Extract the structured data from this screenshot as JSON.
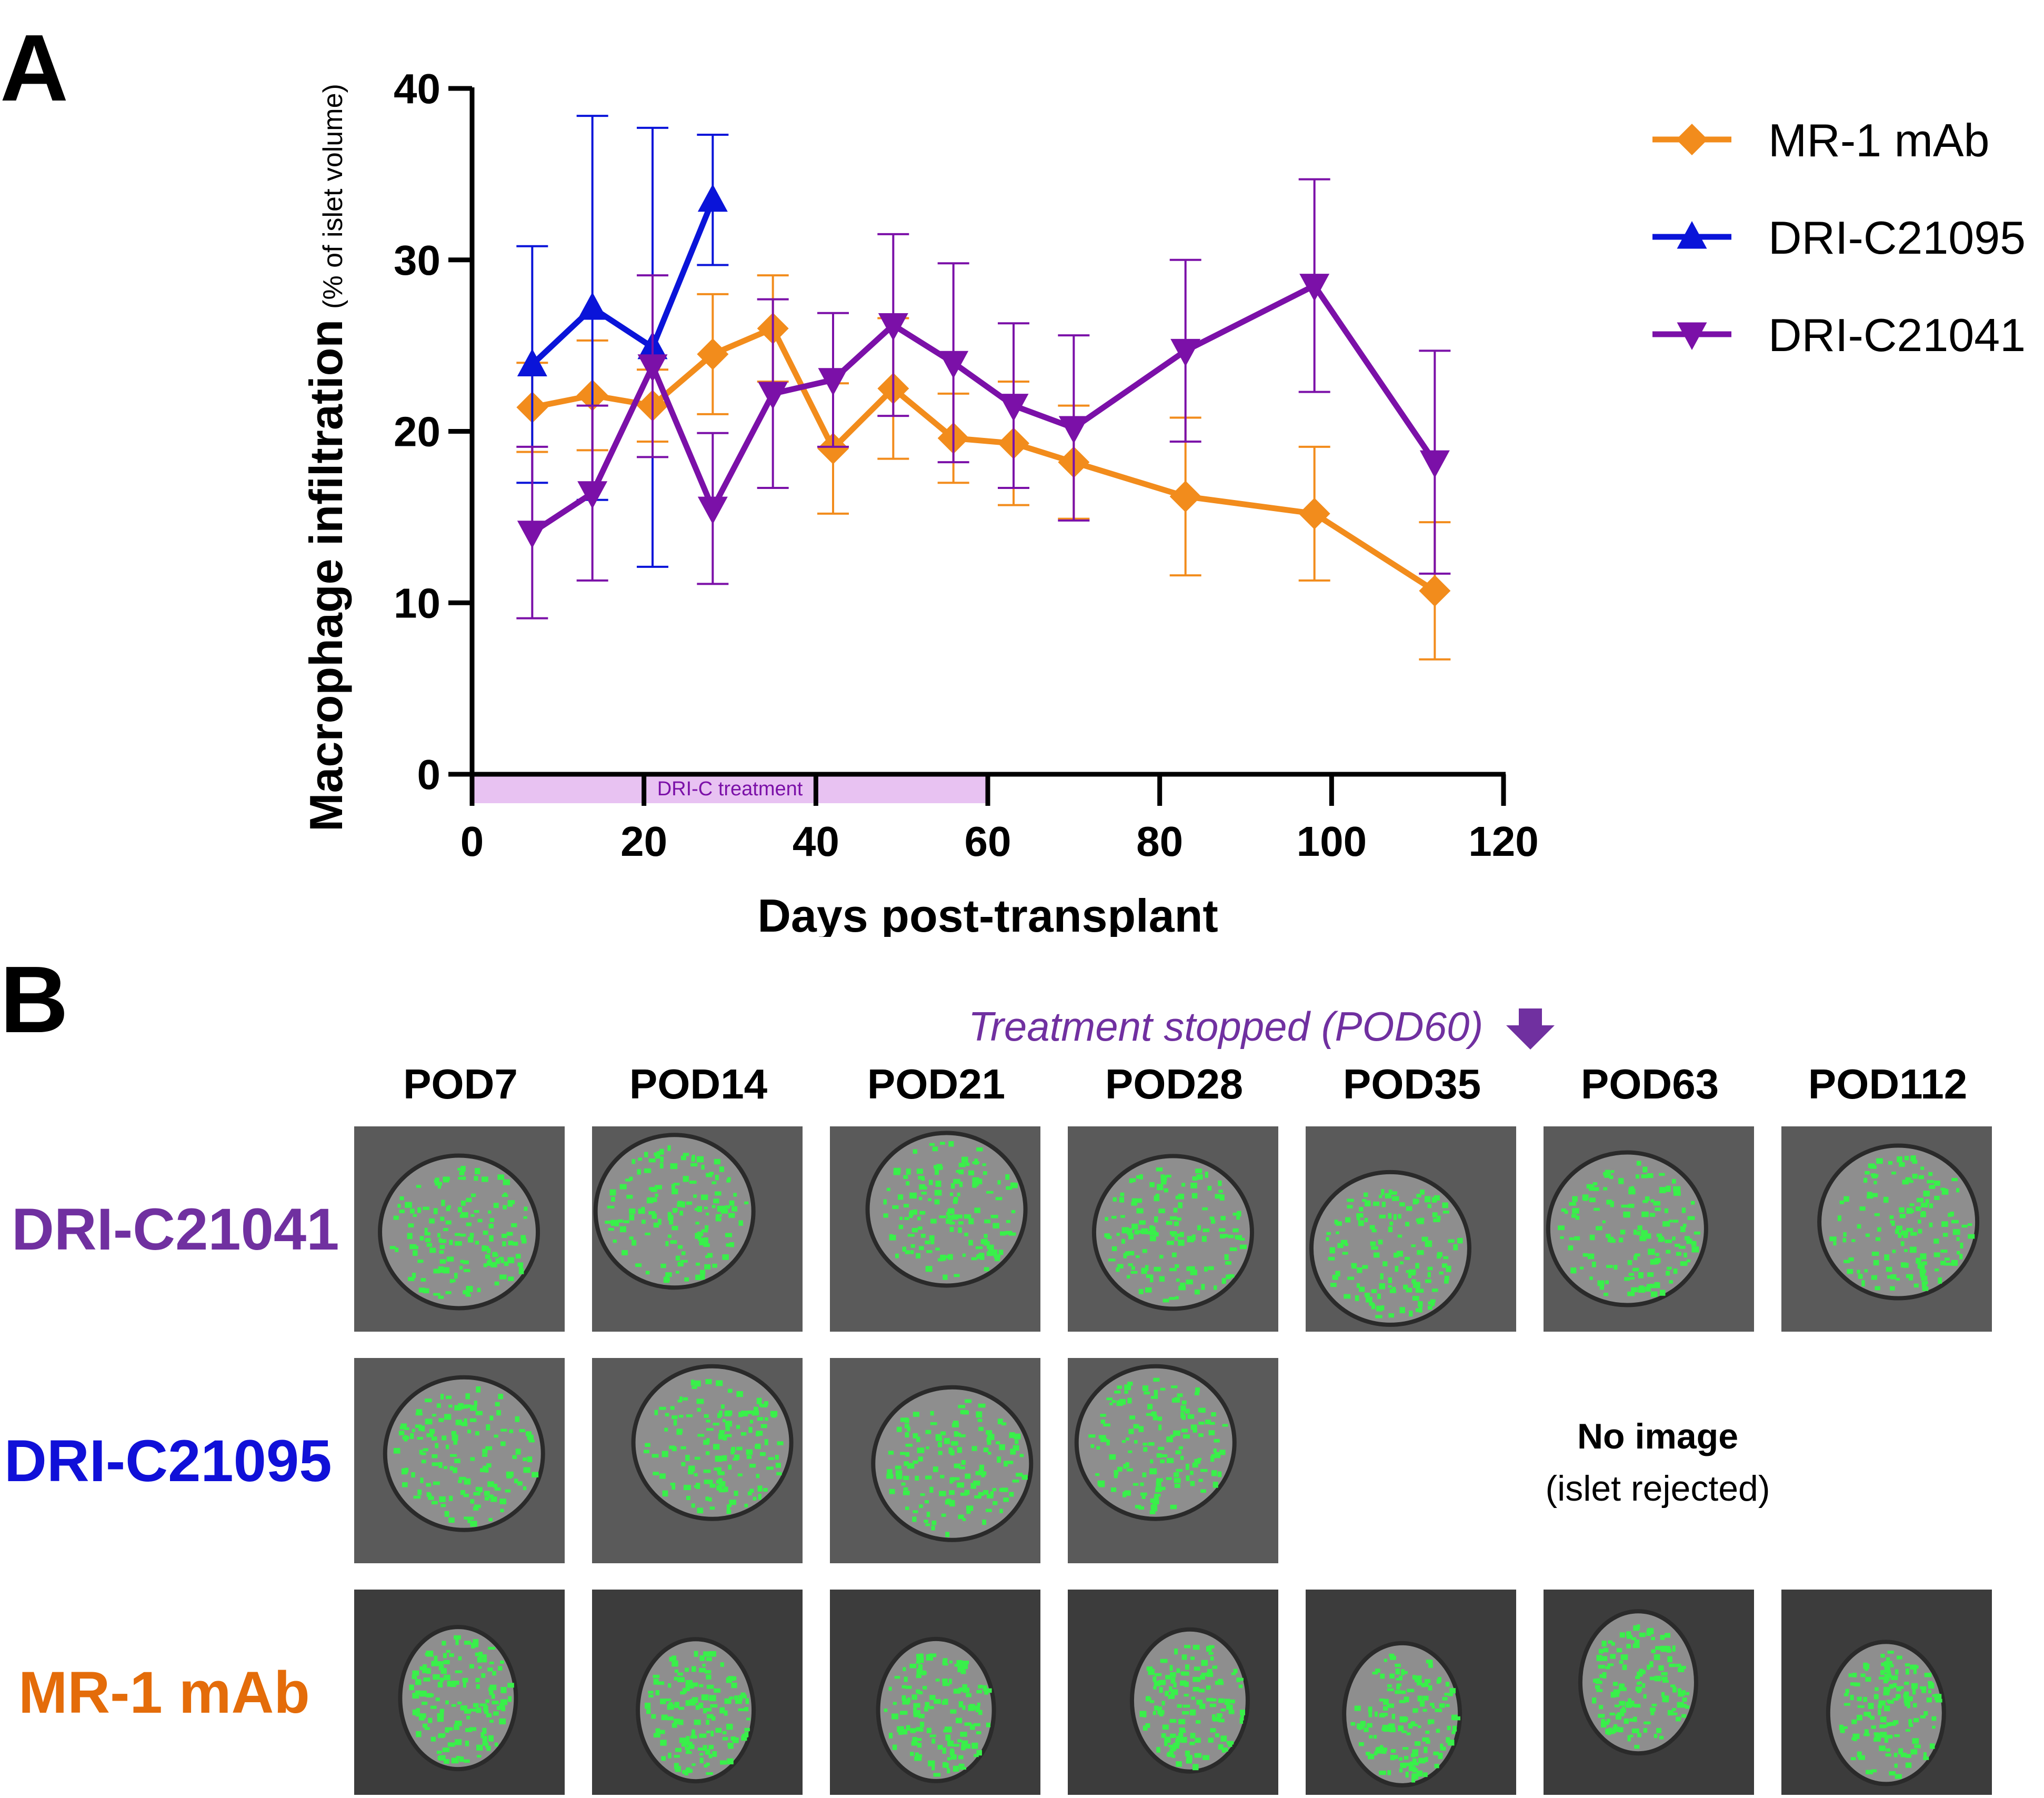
{
  "panel_a_label": "A",
  "panel_b_label": "B",
  "chart_data": {
    "type": "line",
    "ylabel_main": "Macrophage infiltration",
    "ylabel_sub": "(% of islet volume)",
    "xlabel": "Days post-transplant",
    "xlim": [
      0,
      120
    ],
    "ylim": [
      0,
      40
    ],
    "xticks": [
      0,
      20,
      40,
      60,
      80,
      100,
      120
    ],
    "yticks": [
      0,
      10,
      20,
      30,
      40
    ],
    "annotation": {
      "text": "DRI-C treatment",
      "x_start": 0,
      "x_end": 60,
      "color": "#e8c2f2"
    },
    "legend_position": "top-right",
    "series": [
      {
        "name": "MR-1 mAb",
        "color": "#f28c1c",
        "marker": "diamond",
        "x": [
          7,
          14,
          21,
          28,
          35,
          42,
          49,
          56,
          63,
          70,
          83,
          98,
          112
        ],
        "y": [
          21.4,
          22.1,
          21.5,
          24.5,
          26.0,
          19.0,
          22.5,
          19.6,
          19.3,
          18.2,
          16.2,
          15.2,
          10.7
        ],
        "err": [
          2.6,
          3.2,
          2.1,
          3.5,
          3.1,
          3.8,
          4.1,
          2.6,
          3.6,
          3.3,
          4.6,
          3.9,
          4.0
        ]
      },
      {
        "name": "DRI-C21095",
        "color": "#0a14d9",
        "marker": "triangle-up",
        "x": [
          7,
          14,
          21,
          28
        ],
        "y": [
          23.9,
          27.2,
          24.9,
          33.5
        ],
        "err": [
          6.9,
          11.2,
          12.8,
          3.8
        ]
      },
      {
        "name": "DRI-C21041",
        "color": "#7b10a8",
        "marker": "triangle-down",
        "x": [
          7,
          14,
          21,
          28,
          35,
          42,
          49,
          56,
          63,
          70,
          83,
          98,
          112
        ],
        "y": [
          14.1,
          16.4,
          23.8,
          15.5,
          22.2,
          23.0,
          26.2,
          24.0,
          21.5,
          20.2,
          24.7,
          28.5,
          18.2
        ],
        "err": [
          5.0,
          5.1,
          5.3,
          4.4,
          5.5,
          3.9,
          5.3,
          5.8,
          4.8,
          5.4,
          5.3,
          6.2,
          6.5
        ]
      }
    ]
  },
  "panel_b": {
    "treatment_note": "Treatment stopped (POD60)",
    "pods": [
      "POD7",
      "POD14",
      "POD21",
      "POD28",
      "POD35",
      "POD63",
      "POD112"
    ],
    "rows": [
      {
        "label": "DRI-C21041",
        "color": "#7030a0"
      },
      {
        "label": "DRI-C21095",
        "color": "#1010d8"
      },
      {
        "label": "MR-1 mAb",
        "color": "#e46c0a"
      }
    ],
    "no_image_title": "No image",
    "no_image_sub": "(islet rejected)"
  }
}
